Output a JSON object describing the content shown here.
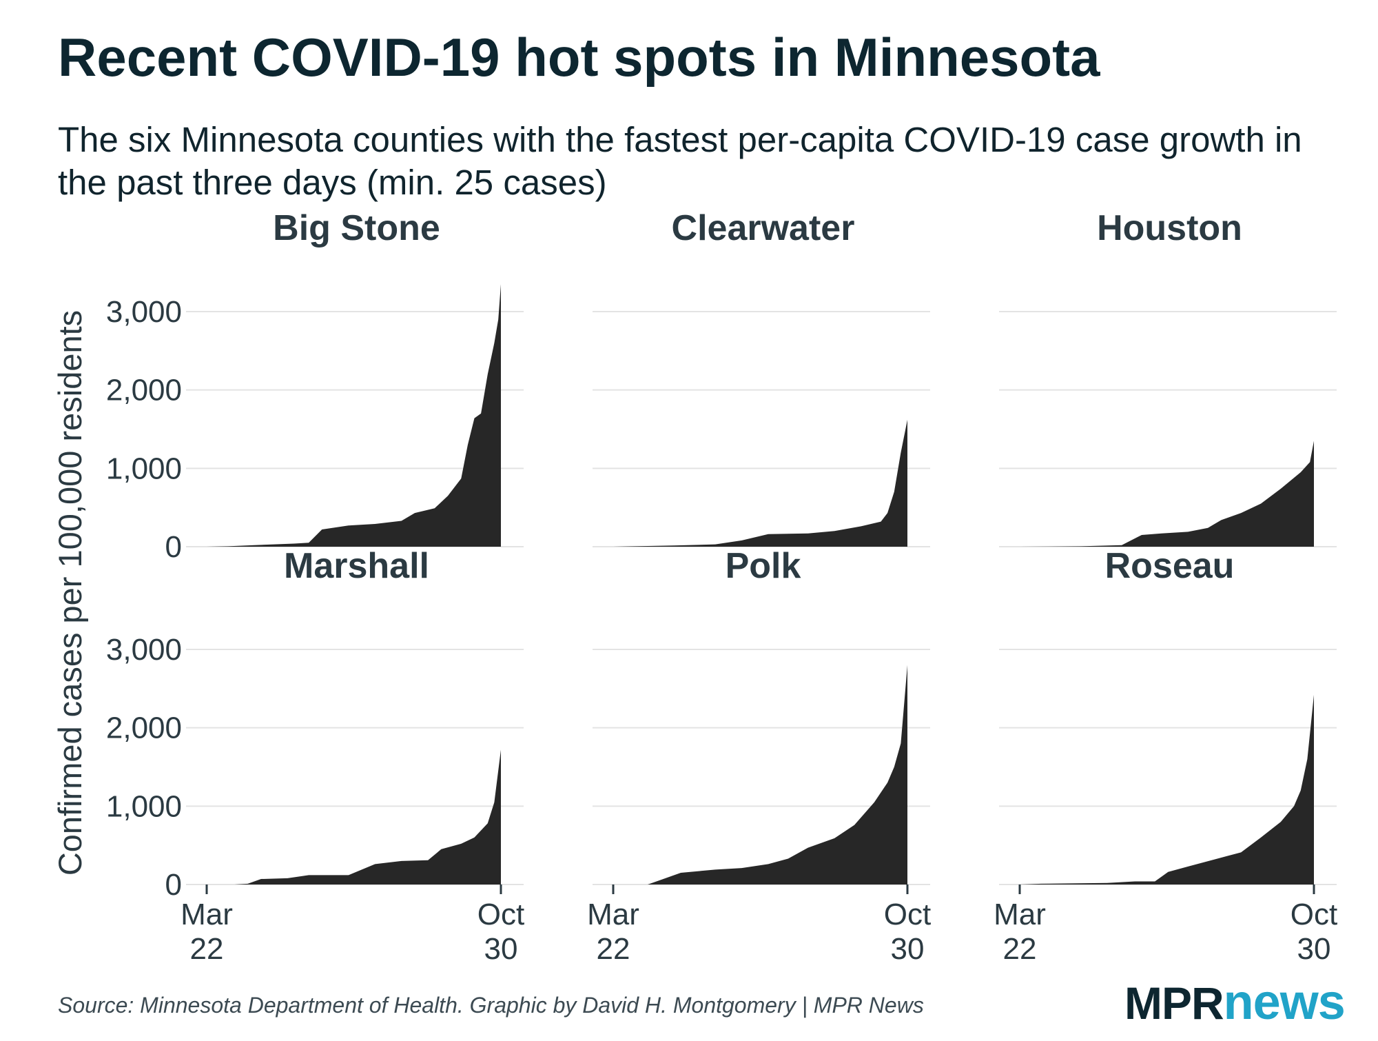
{
  "title": "Recent COVID-19 hot spots in Minnesota",
  "subtitle": "The six Minnesota counties with the fastest per-capita COVID-19 case growth in the past three days (min. 25 cases)",
  "source": "Source: Minnesota Department of Health. Graphic by David H. Montgomery | MPR News",
  "logo": {
    "part1": "MPR",
    "part2": "news",
    "color1": "#0d2630",
    "color2": "#21a3c8"
  },
  "chart_data": {
    "type": "area",
    "ylabel": "Confirmed cases per 100,000 residents",
    "ylim": [
      0,
      3300
    ],
    "yticks": [
      0,
      1000,
      2000,
      3000
    ],
    "ytick_labels": [
      "0",
      "1,000",
      "2,000",
      "3,000"
    ],
    "xlim": [
      "2020-03-22",
      "2020-10-30"
    ],
    "xticks": [
      {
        "date": "2020-03-22",
        "line1": "Mar",
        "line2": "22"
      },
      {
        "date": "2020-10-30",
        "line1": "Oct",
        "line2": "30"
      }
    ],
    "fill_color": "#272727",
    "grid": true,
    "legend": "none",
    "panels": [
      {
        "name": "Big Stone",
        "points": [
          [
            "2020-03-22",
            0
          ],
          [
            "2020-04-07",
            5
          ],
          [
            "2020-04-27",
            20
          ],
          [
            "2020-05-27",
            40
          ],
          [
            "2020-06-07",
            50
          ],
          [
            "2020-06-17",
            220
          ],
          [
            "2020-07-07",
            270
          ],
          [
            "2020-07-27",
            290
          ],
          [
            "2020-08-16",
            330
          ],
          [
            "2020-08-26",
            430
          ],
          [
            "2020-09-10",
            490
          ],
          [
            "2020-09-20",
            650
          ],
          [
            "2020-09-30",
            870
          ],
          [
            "2020-10-05",
            1300
          ],
          [
            "2020-10-10",
            1640
          ],
          [
            "2020-10-15",
            1700
          ],
          [
            "2020-10-20",
            2200
          ],
          [
            "2020-10-25",
            2600
          ],
          [
            "2020-10-28",
            2900
          ],
          [
            "2020-10-30",
            3350
          ]
        ]
      },
      {
        "name": "Clearwater",
        "points": [
          [
            "2020-03-22",
            0
          ],
          [
            "2020-04-07",
            5
          ],
          [
            "2020-05-07",
            15
          ],
          [
            "2020-06-07",
            30
          ],
          [
            "2020-06-27",
            80
          ],
          [
            "2020-07-17",
            160
          ],
          [
            "2020-08-16",
            170
          ],
          [
            "2020-09-05",
            200
          ],
          [
            "2020-09-25",
            260
          ],
          [
            "2020-10-10",
            320
          ],
          [
            "2020-10-15",
            430
          ],
          [
            "2020-10-20",
            700
          ],
          [
            "2020-10-25",
            1200
          ],
          [
            "2020-10-30",
            1620
          ]
        ]
      },
      {
        "name": "Houston",
        "points": [
          [
            "2020-03-22",
            0
          ],
          [
            "2020-05-07",
            5
          ],
          [
            "2020-06-07",
            20
          ],
          [
            "2020-06-22",
            150
          ],
          [
            "2020-07-07",
            170
          ],
          [
            "2020-07-27",
            190
          ],
          [
            "2020-08-11",
            240
          ],
          [
            "2020-08-21",
            340
          ],
          [
            "2020-09-05",
            430
          ],
          [
            "2020-09-20",
            550
          ],
          [
            "2020-10-05",
            740
          ],
          [
            "2020-10-20",
            950
          ],
          [
            "2020-10-27",
            1080
          ],
          [
            "2020-10-30",
            1350
          ]
        ]
      },
      {
        "name": "Marshall",
        "points": [
          [
            "2020-03-22",
            0
          ],
          [
            "2020-04-12",
            0
          ],
          [
            "2020-04-22",
            10
          ],
          [
            "2020-05-02",
            70
          ],
          [
            "2020-05-22",
            80
          ],
          [
            "2020-06-07",
            120
          ],
          [
            "2020-07-07",
            120
          ],
          [
            "2020-07-27",
            260
          ],
          [
            "2020-08-16",
            300
          ],
          [
            "2020-09-05",
            310
          ],
          [
            "2020-09-15",
            450
          ],
          [
            "2020-09-30",
            520
          ],
          [
            "2020-10-10",
            600
          ],
          [
            "2020-10-20",
            780
          ],
          [
            "2020-10-25",
            1050
          ],
          [
            "2020-10-30",
            1720
          ]
        ]
      },
      {
        "name": "Polk",
        "points": [
          [
            "2020-03-22",
            0
          ],
          [
            "2020-04-17",
            0
          ],
          [
            "2020-04-27",
            60
          ],
          [
            "2020-05-12",
            150
          ],
          [
            "2020-06-07",
            190
          ],
          [
            "2020-06-27",
            210
          ],
          [
            "2020-07-17",
            260
          ],
          [
            "2020-08-01",
            330
          ],
          [
            "2020-08-16",
            470
          ],
          [
            "2020-09-05",
            590
          ],
          [
            "2020-09-20",
            760
          ],
          [
            "2020-10-05",
            1050
          ],
          [
            "2020-10-15",
            1300
          ],
          [
            "2020-10-20",
            1500
          ],
          [
            "2020-10-25",
            1800
          ],
          [
            "2020-10-30",
            2800
          ]
        ]
      },
      {
        "name": "Roseau",
        "points": [
          [
            "2020-03-22",
            0
          ],
          [
            "2020-04-07",
            10
          ],
          [
            "2020-05-27",
            20
          ],
          [
            "2020-06-17",
            40
          ],
          [
            "2020-07-02",
            40
          ],
          [
            "2020-07-12",
            160
          ],
          [
            "2020-07-27",
            230
          ],
          [
            "2020-08-16",
            320
          ],
          [
            "2020-09-05",
            410
          ],
          [
            "2020-09-20",
            600
          ],
          [
            "2020-10-05",
            800
          ],
          [
            "2020-10-15",
            1000
          ],
          [
            "2020-10-20",
            1200
          ],
          [
            "2020-10-25",
            1600
          ],
          [
            "2020-10-30",
            2420
          ]
        ]
      }
    ]
  }
}
